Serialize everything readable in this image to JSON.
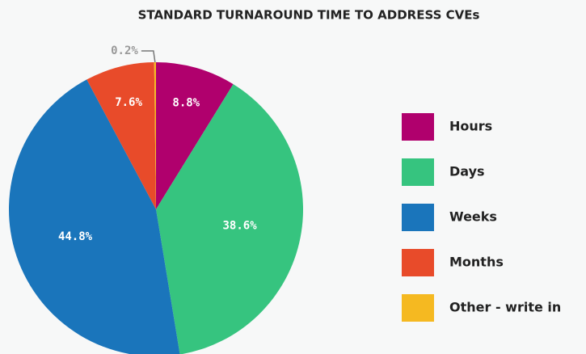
{
  "chart_data": {
    "type": "pie",
    "title": "STANDARD TURNAROUND TIME TO ADDRESS CVEs",
    "categories": [
      "Hours",
      "Days",
      "Weeks",
      "Months",
      "Other - write in"
    ],
    "values": [
      8.8,
      38.6,
      44.8,
      7.6,
      0.2
    ],
    "value_labels": [
      "8.8%",
      "38.6%",
      "44.8%",
      "7.6%",
      "0.2%"
    ],
    "colors": [
      "#b0006d",
      "#36c47f",
      "#1a75bb",
      "#e84b2a",
      "#f5b921"
    ],
    "legend": "right"
  }
}
